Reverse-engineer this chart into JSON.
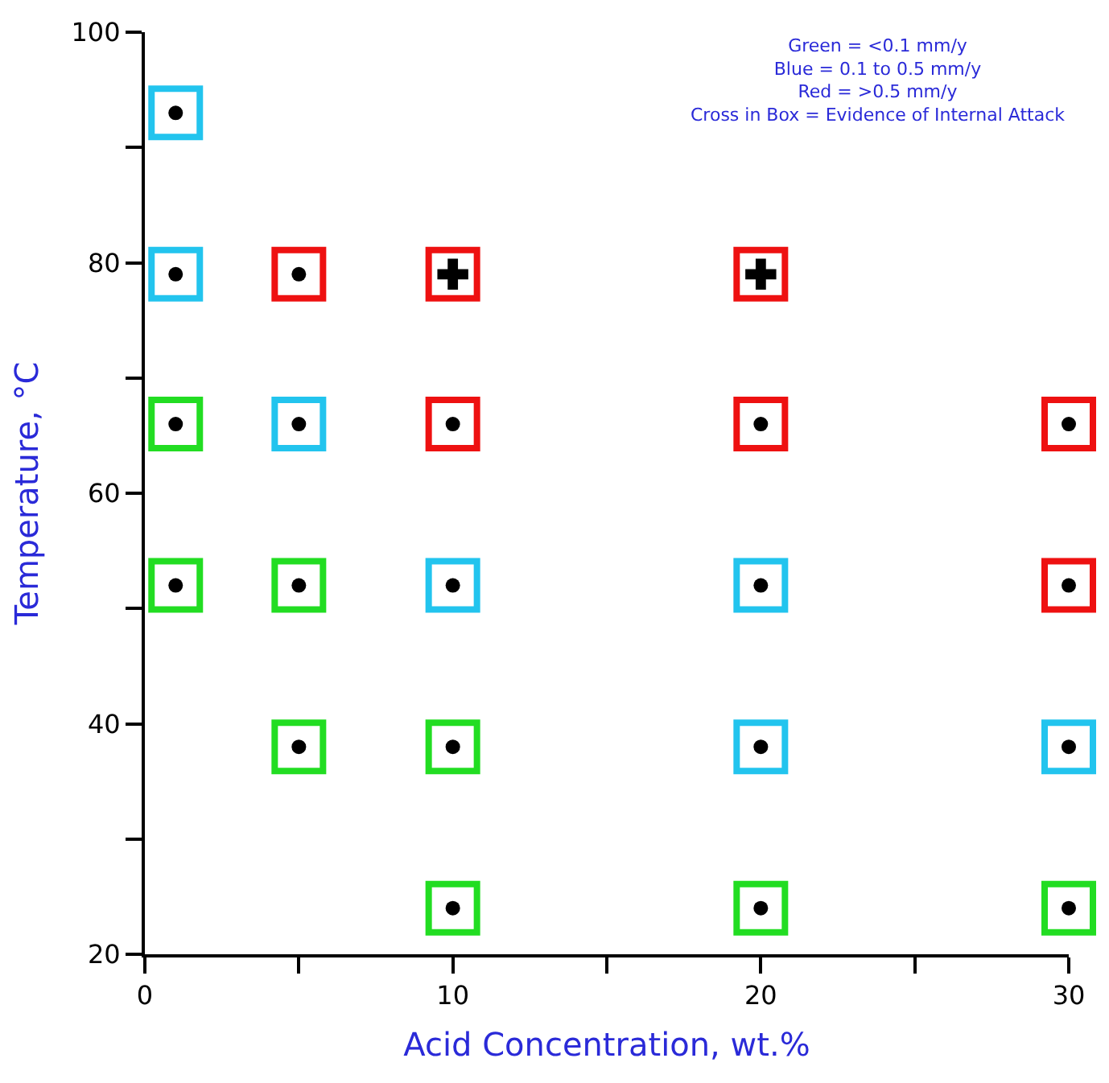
{
  "chart_data": {
    "type": "scatter",
    "xlabel": "Acid Concentration, wt.%",
    "ylabel": "Temperature, °C",
    "xlim": [
      0,
      30
    ],
    "ylim": [
      20,
      100
    ],
    "xticks": [
      0,
      {
        "value": 5,
        "label": null
      },
      10,
      {
        "value": 15,
        "label": null
      },
      20,
      {
        "value": 25,
        "label": null
      },
      30
    ],
    "yticks": [
      20,
      {
        "value": 30,
        "label": null
      },
      40,
      {
        "value": 50,
        "label": null
      },
      60,
      {
        "value": 70,
        "label": null
      },
      80,
      {
        "value": 90,
        "label": null
      },
      100
    ],
    "annotations": [
      "Green = <0.1 mm/y\nBlue = 0.1 to 0.5 mm/y\nRed = >0.5 mm/y\nCross in Box = Evidence of Internal Attack"
    ],
    "series": [
      {
        "color": "#22dd22",
        "marker": "square",
        "x": [
          1,
          1,
          5,
          5,
          10,
          10,
          20,
          30
        ],
        "values": [
          66,
          52,
          52,
          38,
          38,
          24,
          24,
          24
        ]
      },
      {
        "color": "#22c4ee",
        "marker": "square",
        "x": [
          1,
          1,
          5,
          10,
          20,
          20,
          30
        ],
        "values": [
          93,
          79,
          66,
          52,
          52,
          38,
          38
        ]
      },
      {
        "color": "#ee1111",
        "marker": "square",
        "x": [
          5,
          10,
          10,
          20,
          20,
          30,
          30
        ],
        "values": [
          79,
          79,
          66,
          79,
          66,
          66,
          52
        ]
      },
      {
        "color": "#000000",
        "marker": "circle",
        "x": [
          1,
          1,
          1,
          1,
          5,
          5,
          5,
          5,
          10,
          10,
          10,
          20,
          20,
          20,
          30,
          30,
          30,
          30
        ],
        "values": [
          93,
          79,
          66,
          52,
          79,
          66,
          52,
          38,
          66,
          52,
          38,
          66,
          52,
          38,
          66,
          52,
          38,
          24
        ]
      },
      {
        "color": "#000000",
        "marker": "cross",
        "x": [
          10,
          20
        ],
        "values": [
          79,
          79
        ]
      },
      {
        "color": "#000000",
        "marker": "circle",
        "x": [
          10,
          20
        ],
        "values": [
          24,
          24
        ]
      }
    ]
  }
}
